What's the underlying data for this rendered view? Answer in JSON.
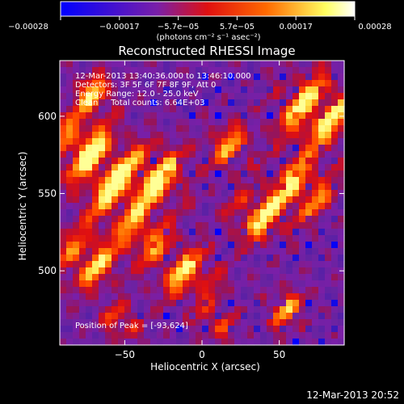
{
  "chart_data": {
    "type": "heatmap",
    "title": "Reconstructed RHESSI Image",
    "xlabel": "Heliocentric X (arcsec)",
    "ylabel": "Heliocentric Y (arcsec)",
    "xlim": [
      -92,
      92
    ],
    "ylim": [
      452,
      636
    ],
    "x_ticks": [
      -50,
      0,
      50
    ],
    "x_tick_labels": [
      "−50",
      "0",
      "50"
    ],
    "y_ticks": [
      500,
      550,
      600
    ],
    "y_tick_labels": [
      "500",
      "550",
      "600"
    ],
    "colorbar": {
      "range": [
        -0.00028,
        0.00028
      ],
      "tick_labels": [
        "−0.00028",
        "−0.00017",
        "−5.7e−05",
        "5.7e−05",
        "0.00017",
        "0.00028"
      ],
      "unit_label": "(photons cm⁻² s⁻¹ asec⁻²)",
      "colors": [
        "#0000ff",
        "#7a1fa8",
        "#e01010",
        "#ff6a00",
        "#ffff60",
        "#ffffff"
      ]
    },
    "annotations": {
      "time_range": "12-Mar-2013 13:40:36.000 to 13:46:10.000",
      "detectors": "Detectors: 3F 5F 6F 7F 8F 9F, Att 0",
      "energy_range": "Energy Range: 12.0 - 25.0 keV",
      "method_counts": "Clean     Total counts: 6.64E+03",
      "peak": "Position of Peak = [-93,624]"
    }
  },
  "footer": {
    "timestamp": "12-Mar-2013 20:52"
  }
}
